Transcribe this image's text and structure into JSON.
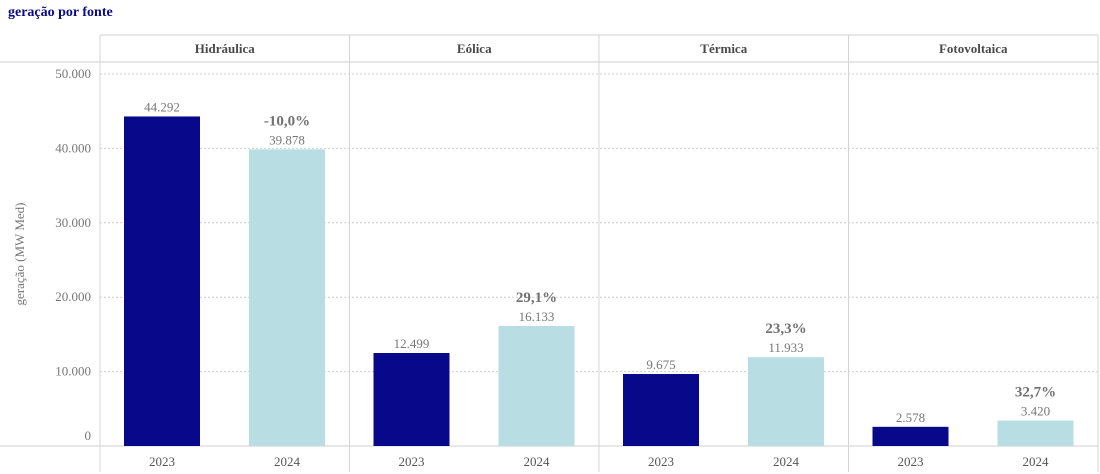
{
  "chart_data": {
    "type": "bar",
    "title": "geração por fonte",
    "ylabel": "geração (MW Med)",
    "ylim": [
      0,
      50000
    ],
    "y_ticks": [
      {
        "value": 0,
        "label": "0"
      },
      {
        "value": 10000,
        "label": "10.000"
      },
      {
        "value": 20000,
        "label": "20.000"
      },
      {
        "value": 30000,
        "label": "30.000"
      },
      {
        "value": 40000,
        "label": "40.000"
      },
      {
        "value": 50000,
        "label": "50.000"
      }
    ],
    "grid": true,
    "colors": {
      "2023": "#08088a",
      "2024": "#b8dde2"
    },
    "panels": [
      {
        "name": "Hidráulica",
        "bars": [
          {
            "year": "2023",
            "value": 44292,
            "label": "44.292"
          },
          {
            "year": "2024",
            "value": 39878,
            "label": "39.878"
          }
        ],
        "change": "-10,0%"
      },
      {
        "name": "Eólica",
        "bars": [
          {
            "year": "2023",
            "value": 12499,
            "label": "12.499"
          },
          {
            "year": "2024",
            "value": 16133,
            "label": "16.133"
          }
        ],
        "change": "29,1%"
      },
      {
        "name": "Térmica",
        "bars": [
          {
            "year": "2023",
            "value": 9675,
            "label": "9.675"
          },
          {
            "year": "2024",
            "value": 11933,
            "label": "11.933"
          }
        ],
        "change": "23,3%"
      },
      {
        "name": "Fotovoltaica",
        "bars": [
          {
            "year": "2023",
            "value": 2578,
            "label": "2.578"
          },
          {
            "year": "2024",
            "value": 3420,
            "label": "3.420"
          }
        ],
        "change": "32,7%"
      }
    ]
  }
}
